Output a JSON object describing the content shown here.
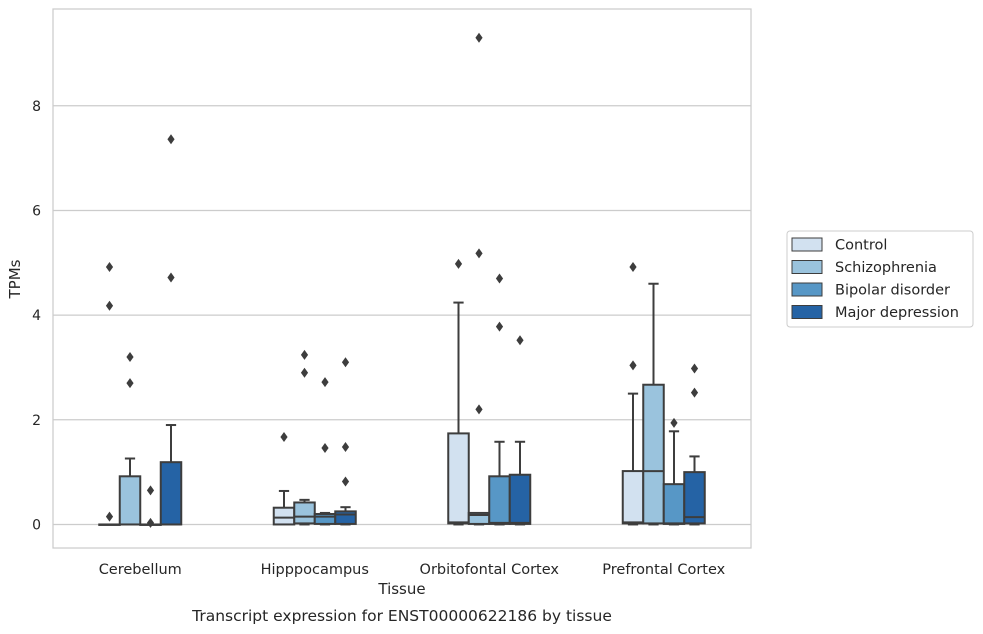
{
  "chart_data": {
    "type": "box",
    "title": "Transcript expression for ENST00000622186 by tissue",
    "xlabel": "Tissue",
    "ylabel": "TPMs",
    "categories": [
      "Cerebellum",
      "Hipppocampus",
      "Orbitofontal Cortex",
      "Prefrontal Cortex"
    ],
    "ylim": [
      -0.45,
      9.85
    ],
    "yticks": [
      0,
      2,
      4,
      6,
      8
    ],
    "grid": "horizontal",
    "legend": "right",
    "series": [
      {
        "name": "Control",
        "color": "#d2e1f0",
        "boxes": [
          {
            "q1": 0,
            "median": 0,
            "q3": 0,
            "whisker_low": 0,
            "whisker_high": 0,
            "outliers": [
              0.15,
              4.18,
              4.92
            ]
          },
          {
            "q1": 0,
            "median": 0.13,
            "q3": 0.32,
            "whisker_low": 0,
            "whisker_high": 0.64,
            "outliers": [
              1.67
            ]
          },
          {
            "q1": 0.02,
            "median": 0.04,
            "q3": 1.74,
            "whisker_low": 0,
            "whisker_high": 4.24,
            "outliers": [
              4.98
            ]
          },
          {
            "q1": 0.02,
            "median": 0.04,
            "q3": 1.02,
            "whisker_low": 0,
            "whisker_high": 2.5,
            "outliers": [
              3.04,
              4.92
            ]
          }
        ]
      },
      {
        "name": "Schizophrenia",
        "color": "#9ac3dd",
        "boxes": [
          {
            "q1": 0,
            "median": 0,
            "q3": 0.92,
            "whisker_low": 0,
            "whisker_high": 1.26,
            "outliers": [
              2.7,
              3.2
            ]
          },
          {
            "q1": 0.02,
            "median": 0.15,
            "q3": 0.42,
            "whisker_low": 0,
            "whisker_high": 0.47,
            "outliers": [
              2.9,
              3.24
            ]
          },
          {
            "q1": 0.01,
            "median": 0.18,
            "q3": 0.22,
            "whisker_low": 0,
            "whisker_high": 0.22,
            "outliers": [
              2.2,
              5.18,
              9.3
            ]
          },
          {
            "q1": 0.02,
            "median": 1.02,
            "q3": 2.67,
            "whisker_low": 0,
            "whisker_high": 4.6,
            "outliers": []
          }
        ]
      },
      {
        "name": "Bipolar disorder",
        "color": "#5797c6",
        "boxes": [
          {
            "q1": 0,
            "median": 0,
            "q3": 0,
            "whisker_low": 0,
            "whisker_high": 0,
            "outliers": [
              0.03,
              0.65
            ]
          },
          {
            "q1": 0.01,
            "median": 0.15,
            "q3": 0.2,
            "whisker_low": 0,
            "whisker_high": 0.22,
            "outliers": [
              1.46,
              2.72
            ]
          },
          {
            "q1": 0.01,
            "median": 0.03,
            "q3": 0.92,
            "whisker_low": 0,
            "whisker_high": 1.58,
            "outliers": [
              3.78,
              4.7
            ]
          },
          {
            "q1": 0.01,
            "median": 0.02,
            "q3": 0.77,
            "whisker_low": 0,
            "whisker_high": 1.78,
            "outliers": [
              1.94
            ]
          }
        ]
      },
      {
        "name": "Major depression",
        "color": "#2563a5",
        "boxes": [
          {
            "q1": 0,
            "median": 0,
            "q3": 1.19,
            "whisker_low": 0,
            "whisker_high": 1.9,
            "outliers": [
              4.72,
              7.36
            ]
          },
          {
            "q1": 0.01,
            "median": 0.19,
            "q3": 0.25,
            "whisker_low": 0,
            "whisker_high": 0.33,
            "outliers": [
              0.82,
              1.48,
              3.1
            ]
          },
          {
            "q1": 0.01,
            "median": 0.03,
            "q3": 0.95,
            "whisker_low": 0,
            "whisker_high": 1.58,
            "outliers": [
              3.52
            ]
          },
          {
            "q1": 0.02,
            "median": 0.14,
            "q3": 1,
            "whisker_low": 0,
            "whisker_high": 1.3,
            "outliers": [
              2.52,
              2.98
            ]
          }
        ]
      }
    ]
  }
}
